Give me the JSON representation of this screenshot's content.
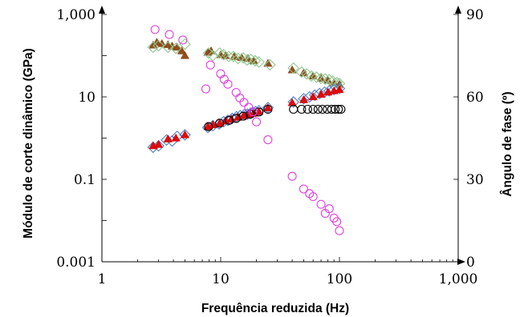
{
  "chart_data": {
    "type": "scatter",
    "xlabel": "Frequência reduzida (Hz)",
    "ylabel_left": "Módulo de corte dinâmico (GPa)",
    "ylabel_right": "Ângulo de fase (º)",
    "x_scale": "log",
    "y_left_scale": "log",
    "xlim": [
      1,
      1000
    ],
    "ylim_left": [
      0.001,
      1000
    ],
    "ylim_right": [
      0,
      90
    ],
    "x_ticks": [
      1,
      10,
      100,
      1000
    ],
    "x_tick_labels": [
      "1",
      "10",
      "100",
      "1,000"
    ],
    "y_left_ticks": [
      0.001,
      0.1,
      10,
      1000
    ],
    "y_left_tick_labels": [
      "0.001",
      "0.1",
      "10",
      "1,000"
    ],
    "y_right_ticks": [
      0,
      30,
      60,
      90
    ],
    "y_right_tick_labels": [
      "0",
      "30",
      "60",
      "90"
    ],
    "grid": false,
    "legend": "none",
    "series": [
      {
        "axis": "left",
        "marker": "triangle-filled",
        "color": "#8B4513",
        "points": [
          [
            2.7,
            180
          ],
          [
            2.9,
            210
          ],
          [
            3.2,
            195
          ],
          [
            3.6,
            185
          ],
          [
            3.9,
            170
          ],
          [
            4.3,
            160
          ],
          [
            4.7,
            130
          ],
          [
            5.0,
            100
          ],
          [
            7.8,
            120
          ],
          [
            8.3,
            130
          ],
          [
            10.0,
            105
          ],
          [
            11.0,
            100
          ],
          [
            13.0,
            95
          ],
          [
            15.0,
            90
          ],
          [
            17.0,
            85
          ],
          [
            19.0,
            75
          ],
          [
            25.0,
            65
          ],
          [
            40.0,
            45
          ],
          [
            50.0,
            38
          ],
          [
            60.0,
            32
          ],
          [
            70.0,
            28
          ],
          [
            80.0,
            25
          ],
          [
            90.0,
            22
          ],
          [
            100.0,
            20
          ]
        ]
      },
      {
        "axis": "left",
        "marker": "diamond-open",
        "color": "#90C890",
        "points": [
          [
            2.7,
            160
          ],
          [
            3.0,
            175
          ],
          [
            3.6,
            160
          ],
          [
            4.2,
            150
          ],
          [
            5.0,
            190
          ],
          [
            7.9,
            115
          ],
          [
            8.6,
            100
          ],
          [
            9.8,
            115
          ],
          [
            10.6,
            105
          ],
          [
            11.7,
            95
          ],
          [
            12.8,
            95
          ],
          [
            14.0,
            85
          ],
          [
            15.5,
            88
          ],
          [
            16.7,
            78
          ],
          [
            18.0,
            80
          ],
          [
            19.5,
            75
          ],
          [
            21.0,
            70
          ],
          [
            26.0,
            60
          ],
          [
            41.0,
            50
          ],
          [
            48.0,
            40
          ],
          [
            53.0,
            36
          ],
          [
            58.0,
            32
          ],
          [
            64.0,
            30
          ],
          [
            70.0,
            28
          ],
          [
            76.0,
            27
          ],
          [
            82.0,
            26
          ],
          [
            88.0,
            24
          ],
          [
            95.0,
            22
          ],
          [
            100.0,
            21
          ]
        ]
      },
      {
        "axis": "left",
        "marker": "diamond-open",
        "color": "#5080C8",
        "points": [
          [
            2.7,
            0.6
          ],
          [
            3.0,
            0.65
          ],
          [
            3.5,
            0.9
          ],
          [
            3.9,
            0.85
          ],
          [
            4.3,
            1.1
          ],
          [
            5.0,
            1.2
          ],
          [
            7.8,
            1.8
          ],
          [
            8.6,
            2.0
          ],
          [
            9.7,
            2.2
          ],
          [
            10.6,
            2.5
          ],
          [
            11.5,
            2.7
          ],
          [
            12.5,
            3.0
          ],
          [
            13.6,
            3.3
          ],
          [
            14.6,
            3.5
          ],
          [
            15.8,
            3.7
          ],
          [
            16.8,
            3.8
          ],
          [
            17.8,
            4.0
          ],
          [
            18.8,
            4.2
          ],
          [
            19.7,
            4.4
          ],
          [
            21.0,
            4.6
          ],
          [
            25.0,
            5.5
          ],
          [
            41.0,
            7.5
          ],
          [
            50.0,
            9.0
          ],
          [
            56.0,
            10.0
          ],
          [
            62.0,
            11.0
          ],
          [
            68.0,
            12.0
          ],
          [
            75.0,
            13.0
          ],
          [
            82.0,
            14.0
          ],
          [
            90.0,
            15.0
          ],
          [
            100.0,
            16.0
          ]
        ]
      },
      {
        "axis": "left",
        "marker": "triangle-filled",
        "color": "#DC0000",
        "points": [
          [
            2.7,
            0.65
          ],
          [
            3.0,
            0.7
          ],
          [
            3.6,
            0.95
          ],
          [
            4.2,
            1.0
          ],
          [
            5.0,
            1.2
          ],
          [
            7.8,
            1.9
          ],
          [
            8.6,
            2.1
          ],
          [
            9.8,
            2.3
          ],
          [
            11.0,
            2.6
          ],
          [
            12.3,
            2.9
          ],
          [
            14.0,
            3.2
          ],
          [
            15.6,
            3.5
          ],
          [
            17.3,
            3.8
          ],
          [
            19.0,
            4.0
          ],
          [
            21.0,
            4.4
          ],
          [
            25.0,
            5.4
          ],
          [
            40.0,
            7.2
          ],
          [
            50.0,
            8.5
          ],
          [
            60.0,
            10.0
          ],
          [
            70.0,
            11.5
          ],
          [
            80.0,
            13.0
          ],
          [
            90.0,
            14.0
          ],
          [
            100.0,
            15.0
          ]
        ]
      },
      {
        "axis": "left",
        "marker": "circle-open",
        "color": "#000000",
        "points": [
          [
            7.9,
            1.9
          ],
          [
            9.8,
            2.3
          ],
          [
            11.8,
            2.7
          ],
          [
            13.5,
            3.0
          ],
          [
            15.5,
            3.4
          ],
          [
            17.7,
            3.8
          ],
          [
            21.0,
            4.3
          ],
          [
            25.0,
            5.0
          ],
          [
            41.0,
            5.0
          ],
          [
            48.0,
            5.0
          ],
          [
            54.0,
            5.0
          ],
          [
            60.0,
            5.0
          ],
          [
            66.0,
            5.0
          ],
          [
            72.0,
            5.0
          ],
          [
            79.0,
            5.0
          ],
          [
            86.0,
            5.0
          ],
          [
            92.0,
            5.0
          ],
          [
            98.0,
            5.0
          ],
          [
            103.0,
            5.0
          ]
        ]
      },
      {
        "axis": "right",
        "marker": "circle-open",
        "color": "#E040E0",
        "points": [
          [
            2.8,
            84.5
          ],
          [
            3.7,
            82.7
          ],
          [
            4.8,
            80.7
          ],
          [
            7.5,
            62.9
          ],
          [
            8.2,
            71.6
          ],
          [
            10.0,
            68.4
          ],
          [
            10.7,
            66.4
          ],
          [
            11.5,
            64.6
          ],
          [
            13.5,
            61.6
          ],
          [
            14.5,
            59.6
          ],
          [
            15.7,
            58.0
          ],
          [
            17.2,
            56.2
          ],
          [
            18.7,
            54.6
          ],
          [
            20.0,
            50.9
          ],
          [
            25.0,
            44.4
          ],
          [
            40.0,
            31.1
          ],
          [
            50.0,
            26.5
          ],
          [
            56.0,
            24.8
          ],
          [
            60.0,
            23.7
          ],
          [
            70.0,
            20.9
          ],
          [
            76.0,
            17.6
          ],
          [
            82.0,
            19.3
          ],
          [
            90.0,
            15.9
          ],
          [
            95.0,
            14.6
          ],
          [
            100.0,
            11.3
          ]
        ]
      }
    ]
  }
}
